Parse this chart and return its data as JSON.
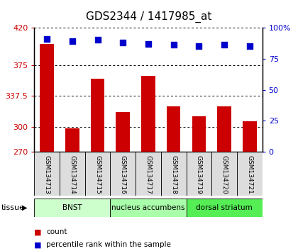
{
  "title": "GDS2344 / 1417985_at",
  "samples": [
    "GSM134713",
    "GSM134714",
    "GSM134715",
    "GSM134716",
    "GSM134717",
    "GSM134718",
    "GSM134719",
    "GSM134720",
    "GSM134721"
  ],
  "counts": [
    400,
    298,
    358,
    318,
    362,
    325,
    313,
    325,
    307
  ],
  "percentiles": [
    91,
    89,
    90,
    88,
    87,
    86,
    85,
    86,
    85
  ],
  "ylim_left": [
    270,
    420
  ],
  "ylim_right": [
    0,
    100
  ],
  "yticks_left": [
    270,
    300,
    337.5,
    375,
    420
  ],
  "yticks_right": [
    0,
    25,
    50,
    75,
    100
  ],
  "bar_color": "#cc0000",
  "dot_color": "#0000cc",
  "tissue_groups": [
    {
      "label": "BNST",
      "start": 0,
      "end": 3,
      "color": "#ccffcc"
    },
    {
      "label": "nucleus accumbens",
      "start": 3,
      "end": 6,
      "color": "#aaffaa"
    },
    {
      "label": "dorsal striatum",
      "start": 6,
      "end": 9,
      "color": "#55ee55"
    }
  ],
  "tissue_label": "tissue",
  "legend_count": "count",
  "legend_percentile": "percentile rank within the sample",
  "background_color": "#ffffff",
  "plot_bg": "#ffffff",
  "grid_color": "#000000",
  "tick_color_left": "#cc0000",
  "tick_color_right": "#0000cc",
  "sample_box_color": "#dddddd",
  "title_fontsize": 11,
  "bar_width": 0.55
}
